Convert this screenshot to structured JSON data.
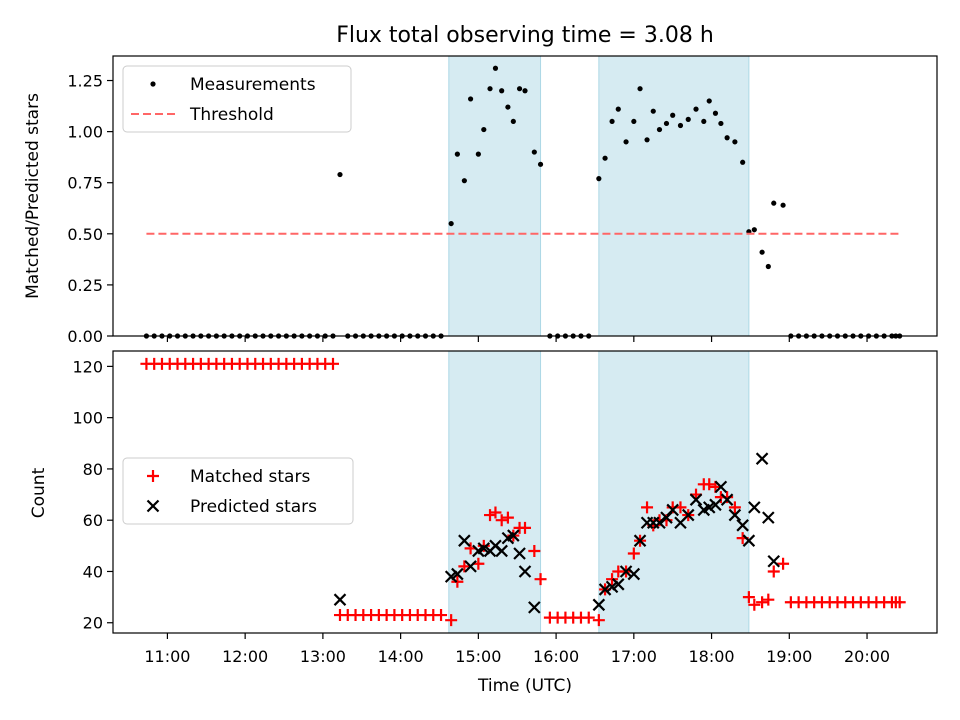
{
  "chart_data": [
    {
      "type": "scatter",
      "title": "Flux total observing time = 3.08 h",
      "xlabel": "",
      "ylabel": "Matched/Predicted stars",
      "ylim": [
        0,
        1.37
      ],
      "xlim": [
        10.3,
        20.9
      ],
      "shaded_intervals": [
        [
          14.62,
          15.8
        ],
        [
          16.55,
          18.48
        ]
      ],
      "shade_color": "#add8e6",
      "yticks": [
        "0.00",
        "0.25",
        "0.50",
        "0.75",
        "1.00",
        "1.25"
      ],
      "legend": {
        "placement": "top-left"
      },
      "series": [
        {
          "name": "Measurements",
          "color": "#000000",
          "marker": "dot",
          "x": [
            10.73,
            10.83,
            10.93,
            11.03,
            11.13,
            11.23,
            11.33,
            11.43,
            11.53,
            11.63,
            11.73,
            11.83,
            11.93,
            12.03,
            12.13,
            12.23,
            12.33,
            12.43,
            12.53,
            12.63,
            12.73,
            12.83,
            12.93,
            13.03,
            13.13,
            13.22,
            13.32,
            13.42,
            13.52,
            13.62,
            13.72,
            13.82,
            13.92,
            14.02,
            14.12,
            14.22,
            14.32,
            14.42,
            14.52,
            14.65,
            14.73,
            14.82,
            14.9,
            15.0,
            15.07,
            15.15,
            15.22,
            15.3,
            15.38,
            15.45,
            15.53,
            15.6,
            15.72,
            15.8,
            15.92,
            16.02,
            16.12,
            16.22,
            16.32,
            16.42,
            16.55,
            16.63,
            16.72,
            16.8,
            16.9,
            17.0,
            17.08,
            17.17,
            17.25,
            17.33,
            17.42,
            17.5,
            17.6,
            17.7,
            17.8,
            17.9,
            17.97,
            18.05,
            18.12,
            18.2,
            18.3,
            18.4,
            18.48,
            18.55,
            18.65,
            18.73,
            18.8,
            18.92,
            19.02,
            19.12,
            19.22,
            19.32,
            19.42,
            19.52,
            19.62,
            19.72,
            19.82,
            19.92,
            20.02,
            20.12,
            20.22,
            20.32,
            20.37,
            20.42
          ],
          "y": [
            0,
            0,
            0,
            0,
            0,
            0,
            0,
            0,
            0,
            0,
            0,
            0,
            0,
            0,
            0,
            0,
            0,
            0,
            0,
            0,
            0,
            0,
            0,
            0,
            0,
            0.79,
            0,
            0,
            0,
            0,
            0,
            0,
            0,
            0,
            0,
            0,
            0,
            0,
            0,
            0.55,
            0.89,
            0.76,
            1.16,
            0.89,
            1.01,
            1.21,
            1.31,
            1.2,
            1.12,
            1.05,
            1.21,
            1.2,
            0.9,
            0.84,
            0,
            0,
            0,
            0,
            0,
            0,
            0.77,
            0.87,
            1.05,
            1.11,
            0.95,
            1.05,
            1.21,
            0.96,
            1.1,
            1.01,
            1.04,
            1.08,
            1.03,
            1.06,
            1.11,
            1.05,
            1.15,
            1.09,
            1.04,
            0.97,
            0.95,
            0.85,
            0.51,
            0.52,
            0.41,
            0.34,
            0.65,
            0.64,
            0,
            0,
            0,
            0,
            0,
            0,
            0,
            0,
            0,
            0,
            0,
            0,
            0,
            0,
            0,
            0
          ]
        },
        {
          "name": "Threshold",
          "color": "#ff6666",
          "style": "dashed",
          "x": [
            10.73,
            20.42
          ],
          "y": [
            0.5,
            0.5
          ]
        }
      ]
    },
    {
      "type": "scatter",
      "title": "",
      "xlabel": "Time (UTC)",
      "ylabel": "Count",
      "ylim": [
        16,
        126
      ],
      "xlim": [
        10.3,
        20.9
      ],
      "shaded_intervals": [
        [
          14.62,
          15.8
        ],
        [
          16.55,
          18.48
        ]
      ],
      "shade_color": "#add8e6",
      "yticks": [
        "20",
        "40",
        "60",
        "80",
        "100",
        "120"
      ],
      "xticks": [
        "11:00",
        "12:00",
        "13:00",
        "14:00",
        "15:00",
        "16:00",
        "17:00",
        "18:00",
        "19:00",
        "20:00"
      ],
      "legend": {
        "placement": "center-left"
      },
      "series": [
        {
          "name": "Matched stars",
          "color": "#ff0000",
          "marker": "plus",
          "x": [
            10.73,
            10.83,
            10.93,
            11.03,
            11.13,
            11.23,
            11.33,
            11.43,
            11.53,
            11.63,
            11.73,
            11.83,
            11.93,
            12.03,
            12.13,
            12.23,
            12.33,
            12.43,
            12.53,
            12.63,
            12.73,
            12.83,
            12.93,
            13.03,
            13.13,
            13.22,
            13.32,
            13.42,
            13.52,
            13.62,
            13.72,
            13.82,
            13.92,
            14.02,
            14.12,
            14.22,
            14.32,
            14.42,
            14.52,
            14.65,
            14.73,
            14.82,
            14.9,
            15.0,
            15.07,
            15.15,
            15.22,
            15.3,
            15.38,
            15.45,
            15.53,
            15.6,
            15.72,
            15.8,
            15.92,
            16.02,
            16.12,
            16.22,
            16.32,
            16.42,
            16.55,
            16.63,
            16.72,
            16.8,
            16.9,
            17.0,
            17.08,
            17.17,
            17.25,
            17.33,
            17.42,
            17.5,
            17.6,
            17.7,
            17.8,
            17.9,
            17.97,
            18.05,
            18.12,
            18.2,
            18.3,
            18.4,
            18.48,
            18.55,
            18.65,
            18.73,
            18.8,
            18.92,
            19.02,
            19.12,
            19.22,
            19.32,
            19.42,
            19.52,
            19.62,
            19.72,
            19.82,
            19.92,
            20.02,
            20.12,
            20.22,
            20.32,
            20.37,
            20.42
          ],
          "y": [
            121,
            121,
            121,
            121,
            121,
            121,
            121,
            121,
            121,
            121,
            121,
            121,
            121,
            121,
            121,
            121,
            121,
            121,
            121,
            121,
            121,
            121,
            121,
            121,
            121,
            23,
            23,
            23,
            23,
            23,
            23,
            23,
            23,
            23,
            23,
            23,
            23,
            23,
            23,
            21,
            36,
            42,
            49,
            43,
            50,
            62,
            63,
            60,
            61,
            54,
            57,
            57,
            48,
            37,
            22,
            22,
            22,
            22,
            22,
            22,
            21,
            33,
            37,
            40,
            40,
            47,
            52,
            65,
            58,
            60,
            60,
            65,
            65,
            62,
            70,
            74,
            74,
            73,
            69,
            69,
            65,
            53,
            30,
            27,
            28,
            29,
            40,
            43,
            28,
            28,
            28,
            28,
            28,
            28,
            28,
            28,
            28,
            28,
            28,
            28,
            28,
            28,
            28,
            28
          ]
        },
        {
          "name": "Predicted stars",
          "color": "#000000",
          "marker": "x",
          "x": [
            13.22,
            14.65,
            14.73,
            14.82,
            14.9,
            15.0,
            15.07,
            15.15,
            15.22,
            15.3,
            15.38,
            15.45,
            15.53,
            15.6,
            15.72,
            16.55,
            16.63,
            16.72,
            16.8,
            16.9,
            17.0,
            17.08,
            17.17,
            17.25,
            17.33,
            17.42,
            17.5,
            17.6,
            17.7,
            17.8,
            17.9,
            17.97,
            18.05,
            18.12,
            18.2,
            18.3,
            18.4,
            18.48,
            18.55,
            18.65,
            18.73,
            18.8
          ],
          "y": [
            29,
            38,
            39,
            52,
            42,
            48,
            49,
            48,
            50,
            48,
            53,
            54,
            47,
            40,
            26,
            27,
            33,
            34,
            35,
            40,
            39,
            52,
            59,
            59,
            59,
            61,
            64,
            59,
            62,
            68,
            64,
            65,
            66,
            73,
            68,
            62,
            58,
            52,
            65,
            84,
            61,
            44
          ]
        }
      ]
    }
  ]
}
